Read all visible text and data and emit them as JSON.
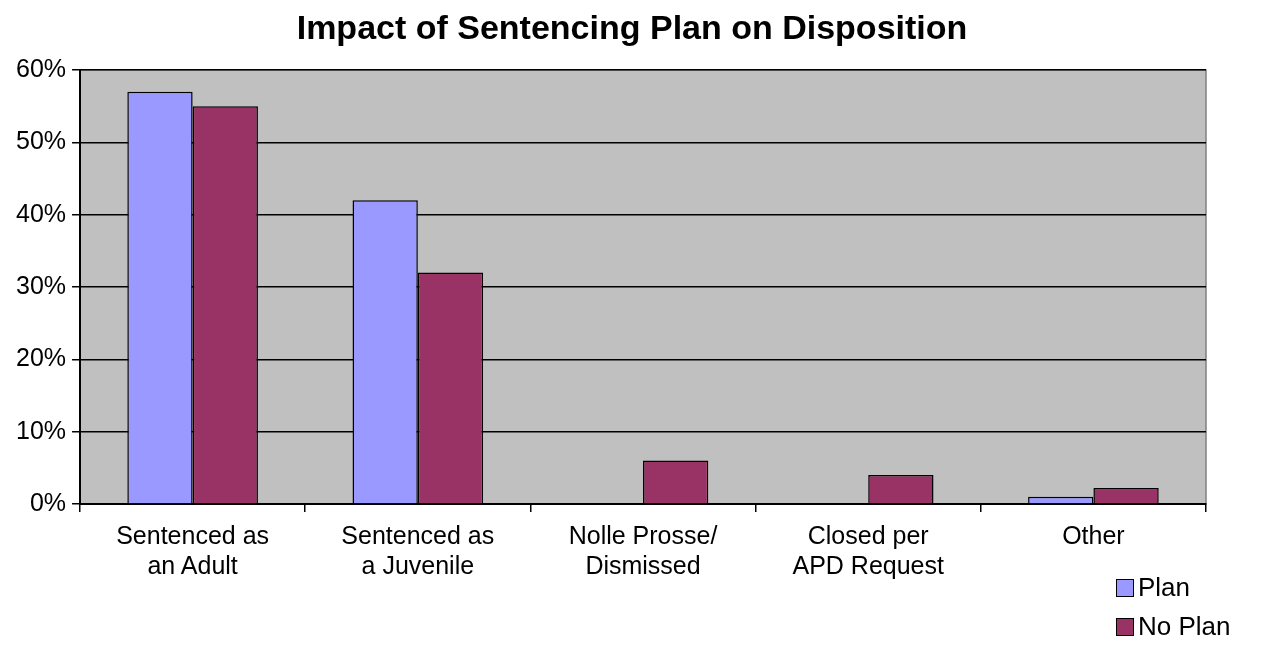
{
  "chart_data": {
    "type": "bar",
    "title": "Impact of Sentencing Plan on Disposition",
    "categories": [
      "Sentenced as an Adult",
      "Sentenced as a Juvenile",
      "Nolle Prosse/ Dismissed",
      "Closed per APD Request",
      "Other"
    ],
    "series": [
      {
        "name": "Plan",
        "color": "#9999ff",
        "values": [
          57,
          42,
          0,
          0,
          1
        ]
      },
      {
        "name": "No Plan",
        "color": "#993366",
        "values": [
          55,
          32,
          6,
          4,
          2.2
        ]
      }
    ],
    "ylim": [
      0,
      60
    ],
    "yticks": [
      {
        "value": 0,
        "label": "0%"
      },
      {
        "value": 10,
        "label": "10%"
      },
      {
        "value": 20,
        "label": "20%"
      },
      {
        "value": 30,
        "label": "30%"
      },
      {
        "value": 40,
        "label": "40%"
      },
      {
        "value": 50,
        "label": "50%"
      },
      {
        "value": 60,
        "label": "60%"
      }
    ],
    "grid": "y",
    "legend": "bottom right"
  }
}
